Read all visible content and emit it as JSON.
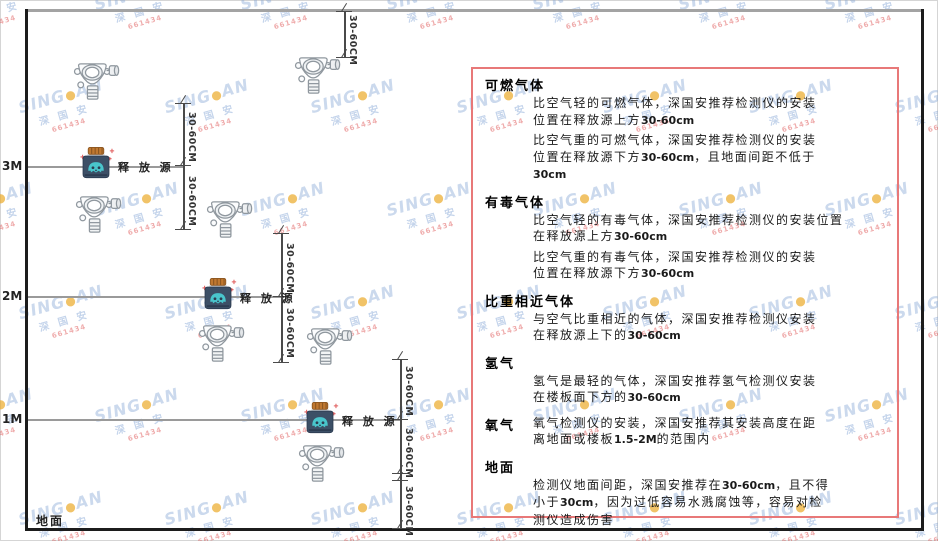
{
  "watermark": {
    "line1_pre": "SING",
    "dot": "●",
    "line1_post": "AN",
    "line2": "深 国 安",
    "line3": "661434"
  },
  "diagram": {
    "height_labels": [
      "3M",
      "2M",
      "1M"
    ],
    "dim_label": "30-60CM",
    "release_source_label": "释 放 源",
    "ground_label": "地面"
  },
  "icons": {
    "gas-detector-icon": "wall-mounted gas detector with side junction cylinder",
    "release-source-icon": "dark jar with orange cap emitting teal gas cloud"
  },
  "colors": {
    "panel_border": "#e87878",
    "wall_line": "#1c1c1c",
    "ceiling_line": "#a3a3a3",
    "detector_outline": "#8f979e",
    "source_cap": "#c07830",
    "source_body": "#3c4f66",
    "source_face": "#49c5cc",
    "watermark_blue": "#7da0d2",
    "watermark_red": "#dc4646"
  },
  "panel": {
    "sections": [
      {
        "heading": "可燃气体",
        "inline": false,
        "paragraphs": [
          [
            "比空气轻的可燃气体，深国安推荐检测仪的安装",
            "位置在释放源上方30-60cm"
          ],
          [
            "比空气重的可燃气体，深国安推荐检测仪的安装",
            "位置在释放源下方30-60cm，且地面间距不低于",
            "30cm"
          ]
        ]
      },
      {
        "heading": "有毒气体",
        "inline": false,
        "paragraphs": [
          [
            "比空气轻的有毒气体，深国安推荐检测仪的安装位置",
            "在释放源上方30-60cm"
          ],
          [
            "比空气重的有毒气体，深国安推荐检测仪的安装",
            "位置在释放源下方30-60cm"
          ]
        ]
      },
      {
        "heading": "比重相近气体",
        "inline": false,
        "paragraphs": [
          [
            "与空气比重相近的气体，深国安推荐检测仪安装",
            "在释放源上下的30-60cm"
          ]
        ]
      },
      {
        "heading": "氢气",
        "inline": false,
        "paragraphs": [
          [
            "氢气是最轻的气体，深国安推荐氢气检测仪安装",
            "在楼板面下方的30-60cm"
          ]
        ]
      },
      {
        "heading": "氧气",
        "inline": true,
        "paragraphs": [
          [
            "氧气检测仪的安装，深国安推荐其安装高度在距",
            "离地面或楼板1.5-2M的范围内"
          ]
        ]
      },
      {
        "heading": "地面",
        "inline": false,
        "paragraphs": [
          [
            "检测仪地面间距，深国安推荐在30-60cm，且不得",
            "小于30cm，因为过低容易水溅腐蚀等，容易对检",
            "测仪造成伤害"
          ]
        ]
      }
    ]
  }
}
